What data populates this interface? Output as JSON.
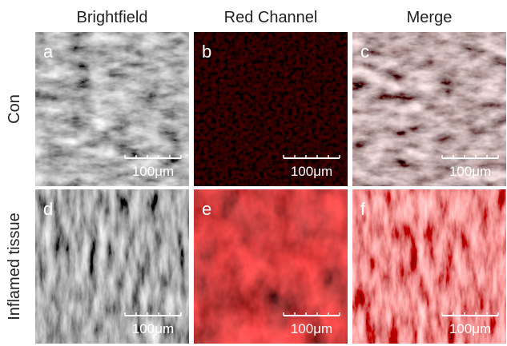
{
  "columns": [
    "Brightfield",
    "Red Channel",
    "Merge"
  ],
  "rows": [
    {
      "label": "Con",
      "panels": [
        {
          "letter": "a",
          "scale": "100μm"
        },
        {
          "letter": "b",
          "scale": "100μm"
        },
        {
          "letter": "c",
          "scale": "100μm"
        }
      ]
    },
    {
      "label": "Inflamed tissue",
      "panels": [
        {
          "letter": "d",
          "scale": "100μm"
        },
        {
          "letter": "e",
          "scale": "100μm"
        },
        {
          "letter": "f",
          "scale": "100μm"
        }
      ]
    }
  ]
}
